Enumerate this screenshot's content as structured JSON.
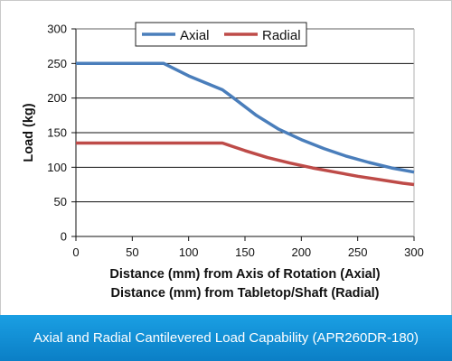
{
  "caption": "Axial and Radial Cantilevered Load Capability (APR260DR-180)",
  "chart_data": {
    "type": "line",
    "title": "",
    "xlabel_line1": "Distance (mm) from Axis of Rotation (Axial)",
    "xlabel_line2": "Distance (mm) from Tabletop/Shaft (Radial)",
    "ylabel": "Load (kg)",
    "xlim": [
      0,
      300
    ],
    "ylim": [
      0,
      300
    ],
    "xticks": [
      0,
      50,
      100,
      150,
      200,
      250,
      300
    ],
    "yticks": [
      0,
      50,
      100,
      150,
      200,
      250,
      300
    ],
    "grid": "horizontal",
    "legend": "top-center",
    "series": [
      {
        "name": "Axial",
        "color": "#4a7ebb",
        "x": [
          0,
          78,
          100,
          130,
          140,
          160,
          180,
          200,
          220,
          240,
          260,
          280,
          300
        ],
        "y": [
          250,
          250,
          232,
          212,
          200,
          175,
          155,
          140,
          127,
          116,
          107,
          99,
          93
        ]
      },
      {
        "name": "Radial",
        "color": "#be4b48",
        "x": [
          0,
          130,
          150,
          170,
          190,
          210,
          230,
          250,
          270,
          290,
          300
        ],
        "y": [
          135,
          135,
          124,
          114,
          106,
          99,
          93,
          87,
          82,
          77,
          75
        ]
      }
    ]
  }
}
